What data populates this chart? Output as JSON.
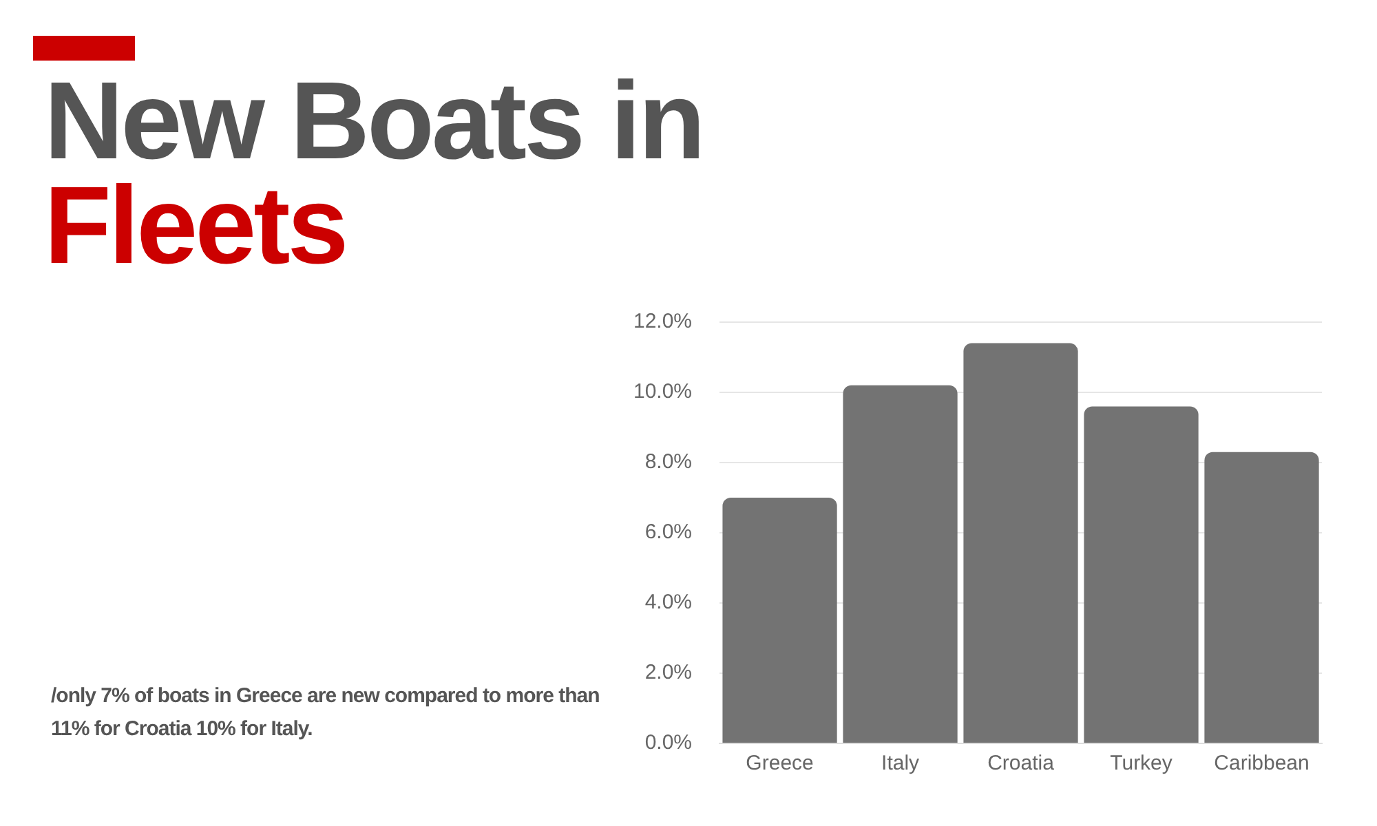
{
  "chart_data": {
    "type": "bar",
    "title": "New Boats in Fleets",
    "categories": [
      "Greece",
      "Italy",
      "Croatia",
      "Turkey",
      "Caribbean"
    ],
    "values": [
      7.0,
      10.2,
      11.4,
      9.6,
      8.3
    ],
    "color": "#737373",
    "ylim": [
      0,
      12
    ],
    "yticks": [
      {
        "value": 0,
        "label": "0.0%"
      },
      {
        "value": 2,
        "label": "2.0%"
      },
      {
        "value": 4,
        "label": "4.0%"
      },
      {
        "value": 6,
        "label": "6.0%"
      },
      {
        "value": 8,
        "label": "8.0%"
      },
      {
        "value": 10,
        "label": "10.0%"
      },
      {
        "value": 12,
        "label": "12.0%"
      }
    ],
    "grid": "y",
    "annotations": [
      "/only 7% of boats in  Greece are new compared to more than 11% for Croatia 10% for Italy."
    ]
  }
}
